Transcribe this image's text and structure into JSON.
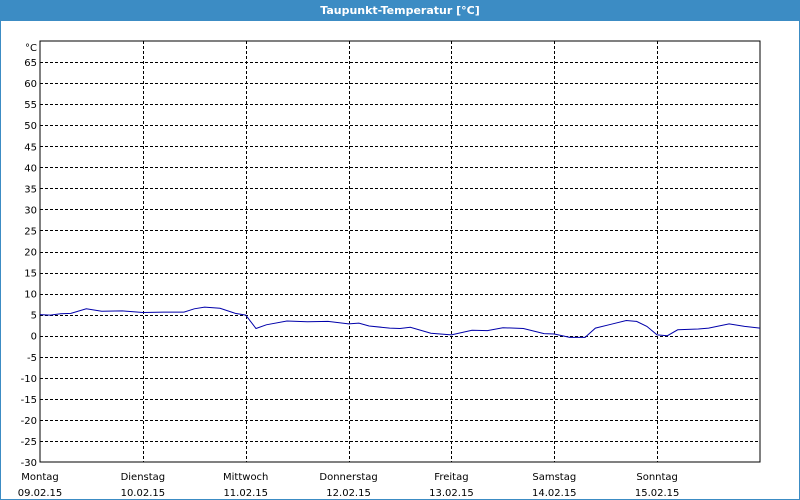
{
  "window": {
    "title": "Taupunkt-Temperatur [°C]"
  },
  "chart_data": {
    "type": "line",
    "title": "Taupunkt-Temperatur [°C]",
    "ylabel": "°C",
    "ylim": [
      -30,
      70
    ],
    "yticks": [
      65,
      60,
      55,
      50,
      45,
      40,
      35,
      30,
      25,
      20,
      15,
      10,
      5,
      0,
      -5,
      -10,
      -15,
      -20,
      -25,
      -30
    ],
    "xlim": [
      0,
      7
    ],
    "xtick_labels": [
      {
        "day": "Montag",
        "date": "09.02.15"
      },
      {
        "day": "Dienstag",
        "date": "10.02.15"
      },
      {
        "day": "Mittwoch",
        "date": "11.02.15"
      },
      {
        "day": "Donnerstag",
        "date": "12.02.15"
      },
      {
        "day": "Freitag",
        "date": "13.02.15"
      },
      {
        "day": "Samstag",
        "date": "14.02.15"
      },
      {
        "day": "Sonntag",
        "date": "15.02.15"
      }
    ],
    "grid": true,
    "series": [
      {
        "color": "#0000aa",
        "x": [
          0,
          0.1,
          0.2,
          0.3,
          0.45,
          0.6,
          0.8,
          1.0,
          1.2,
          1.4,
          1.5,
          1.6,
          1.75,
          1.9,
          2.0,
          2.1,
          2.2,
          2.4,
          2.6,
          2.8,
          3.0,
          3.1,
          3.2,
          3.4,
          3.5,
          3.6,
          3.8,
          4.0,
          4.2,
          4.35,
          4.5,
          4.7,
          4.9,
          5.0,
          5.15,
          5.3,
          5.4,
          5.55,
          5.7,
          5.8,
          5.9,
          6.0,
          6.1,
          6.2,
          6.4,
          6.5,
          6.7,
          6.85,
          7.0
        ],
        "y": [
          5,
          4.9,
          5.2,
          5.3,
          6.4,
          5.8,
          5.9,
          5.5,
          5.6,
          5.6,
          6.4,
          6.8,
          6.5,
          5.3,
          4.9,
          1.7,
          2.6,
          3.5,
          3.3,
          3.4,
          2.8,
          3.0,
          2.3,
          1.8,
          1.7,
          2.0,
          0.6,
          0.2,
          1.3,
          1.2,
          1.9,
          1.7,
          0.5,
          0.4,
          -0.4,
          -0.4,
          1.8,
          2.7,
          3.6,
          3.4,
          2.2,
          0.2,
          0.0,
          1.4,
          1.6,
          1.8,
          2.8,
          2.2,
          1.8
        ]
      }
    ]
  }
}
